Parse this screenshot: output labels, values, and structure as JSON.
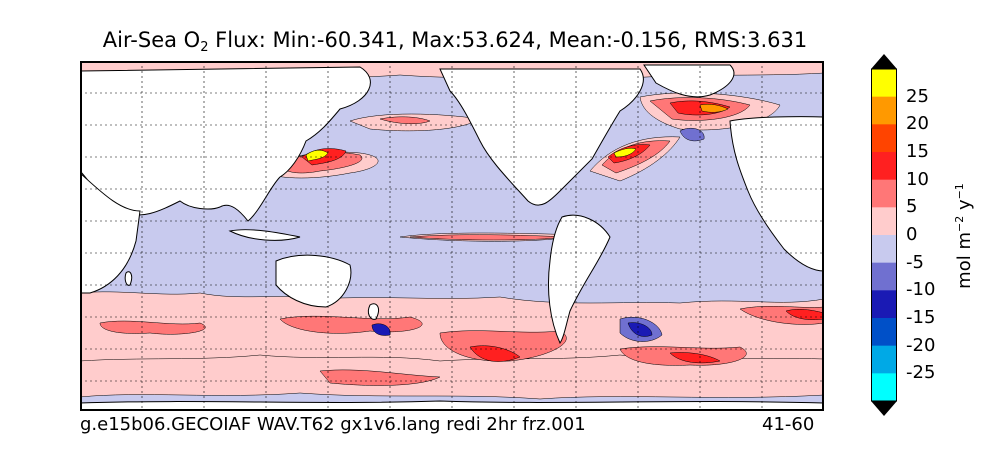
{
  "title": {
    "prefix": "Air-Sea O",
    "subscript": "2",
    "suffix": " Flux: Min:-60.341, Max:53.624, Mean:-0.156, RMS:3.631"
  },
  "footer": {
    "run_name": "g.e15b06.GECOIAF WAV.T62 gx1v6.lang redi 2hr frz.001",
    "period": "41-60"
  },
  "colorbar": {
    "units": {
      "text": "mol m",
      "exp1": "−2",
      "mid": " y",
      "exp2": "−1"
    },
    "tick_labels": [
      "25",
      "20",
      "15",
      "10",
      "5",
      "0",
      "-5",
      "-10",
      "-15",
      "-20",
      "-25"
    ],
    "bins": [
      {
        "range": "<-30",
        "color": "#000000"
      },
      {
        "range": "-30..-25",
        "color": "#00ffff"
      },
      {
        "range": "-25..-20",
        "color": "#00a9e6"
      },
      {
        "range": "-20..-15",
        "color": "#0050c8"
      },
      {
        "range": "-15..-10",
        "color": "#1a1ab4"
      },
      {
        "range": "-10..-5",
        "color": "#7070d0"
      },
      {
        "range": "-5..0",
        "color": "#c8caee"
      },
      {
        "range": "0..5",
        "color": "#ffcccc"
      },
      {
        "range": "5..10",
        "color": "#ff7777"
      },
      {
        "range": "10..15",
        "color": "#ff2020"
      },
      {
        "range": "15..20",
        "color": "#ff4400"
      },
      {
        "range": "20..25",
        "color": "#ff9900"
      },
      {
        "range": "25..30",
        "color": "#ffff00"
      },
      {
        "range": ">30",
        "color": "#000000"
      }
    ]
  },
  "map": {
    "ocean_background_color": "#c8caee",
    "land_color": "#ffffff",
    "gridlines": "dashed",
    "projection": "cylindrical, 20E–380E"
  }
}
